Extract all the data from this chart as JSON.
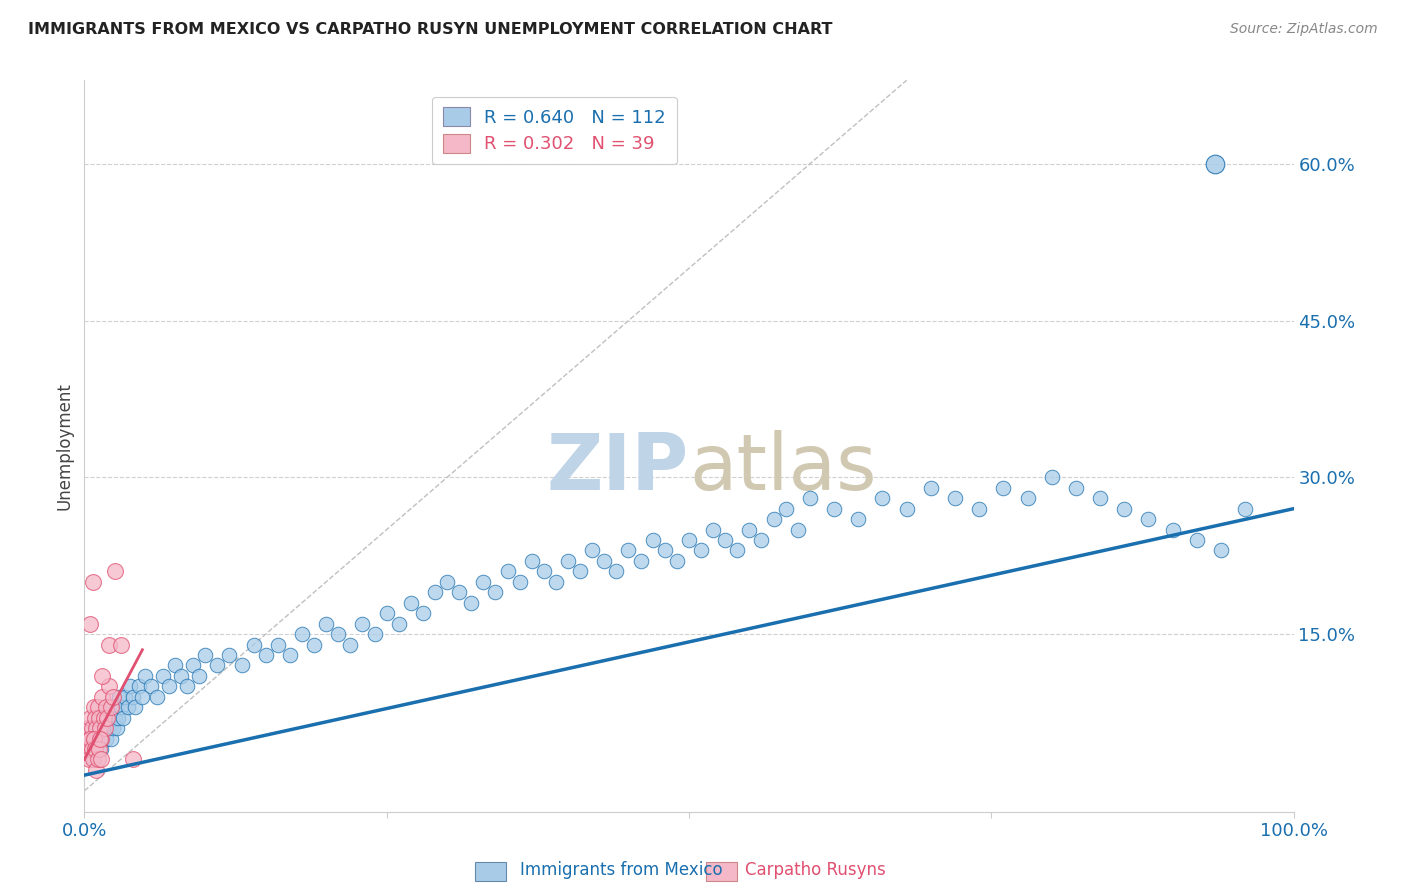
{
  "title": "IMMIGRANTS FROM MEXICO VS CARPATHO RUSYN UNEMPLOYMENT CORRELATION CHART",
  "source": "Source: ZipAtlas.com",
  "ylabel": "Unemployment",
  "yticks": [
    "60.0%",
    "45.0%",
    "30.0%",
    "15.0%"
  ],
  "ytick_vals": [
    0.6,
    0.45,
    0.3,
    0.15
  ],
  "xlim": [
    0.0,
    1.0
  ],
  "ylim": [
    -0.02,
    0.68
  ],
  "blue_R": 0.64,
  "blue_N": 112,
  "pink_R": 0.302,
  "pink_N": 39,
  "legend_label_blue": "Immigrants from Mexico",
  "legend_label_pink": "Carpatho Rusyns",
  "blue_color": "#a8cce8",
  "pink_color": "#f4b8c8",
  "line_blue": "#1a6faf",
  "line_pink": "#e05070",
  "diagonal_color": "#c0c0c0",
  "watermark_zip_color": "#c0d4e8",
  "watermark_atlas_color": "#d0c8b0",
  "background_color": "#ffffff",
  "blue_line_start_x": 0.0,
  "blue_line_start_y": 0.015,
  "blue_line_end_x": 1.0,
  "blue_line_end_y": 0.27,
  "pink_line_start_x": 0.0,
  "pink_line_start_y": 0.03,
  "pink_line_end_x": 0.048,
  "pink_line_end_y": 0.135,
  "blue_scatter_x": [
    0.005,
    0.007,
    0.008,
    0.009,
    0.01,
    0.011,
    0.012,
    0.013,
    0.014,
    0.015,
    0.016,
    0.017,
    0.018,
    0.019,
    0.02,
    0.021,
    0.022,
    0.023,
    0.024,
    0.025,
    0.026,
    0.027,
    0.028,
    0.029,
    0.03,
    0.032,
    0.034,
    0.036,
    0.038,
    0.04,
    0.042,
    0.045,
    0.048,
    0.05,
    0.055,
    0.06,
    0.065,
    0.07,
    0.075,
    0.08,
    0.085,
    0.09,
    0.095,
    0.1,
    0.11,
    0.12,
    0.13,
    0.14,
    0.15,
    0.16,
    0.17,
    0.18,
    0.19,
    0.2,
    0.21,
    0.22,
    0.23,
    0.24,
    0.25,
    0.26,
    0.27,
    0.28,
    0.29,
    0.3,
    0.31,
    0.32,
    0.33,
    0.34,
    0.35,
    0.36,
    0.37,
    0.38,
    0.39,
    0.4,
    0.41,
    0.42,
    0.43,
    0.44,
    0.45,
    0.46,
    0.47,
    0.48,
    0.49,
    0.5,
    0.51,
    0.52,
    0.53,
    0.54,
    0.55,
    0.56,
    0.57,
    0.58,
    0.59,
    0.6,
    0.62,
    0.64,
    0.66,
    0.68,
    0.7,
    0.72,
    0.74,
    0.76,
    0.78,
    0.8,
    0.82,
    0.84,
    0.86,
    0.88,
    0.9,
    0.92,
    0.94,
    0.96
  ],
  "blue_scatter_y": [
    0.04,
    0.05,
    0.03,
    0.06,
    0.04,
    0.07,
    0.05,
    0.06,
    0.04,
    0.05,
    0.06,
    0.07,
    0.05,
    0.08,
    0.06,
    0.07,
    0.05,
    0.08,
    0.06,
    0.07,
    0.08,
    0.06,
    0.07,
    0.09,
    0.08,
    0.07,
    0.09,
    0.08,
    0.1,
    0.09,
    0.08,
    0.1,
    0.09,
    0.11,
    0.1,
    0.09,
    0.11,
    0.1,
    0.12,
    0.11,
    0.1,
    0.12,
    0.11,
    0.13,
    0.12,
    0.13,
    0.12,
    0.14,
    0.13,
    0.14,
    0.13,
    0.15,
    0.14,
    0.16,
    0.15,
    0.14,
    0.16,
    0.15,
    0.17,
    0.16,
    0.18,
    0.17,
    0.19,
    0.2,
    0.19,
    0.18,
    0.2,
    0.19,
    0.21,
    0.2,
    0.22,
    0.21,
    0.2,
    0.22,
    0.21,
    0.23,
    0.22,
    0.21,
    0.23,
    0.22,
    0.24,
    0.23,
    0.22,
    0.24,
    0.23,
    0.25,
    0.24,
    0.23,
    0.25,
    0.24,
    0.26,
    0.27,
    0.25,
    0.28,
    0.27,
    0.26,
    0.28,
    0.27,
    0.29,
    0.28,
    0.27,
    0.29,
    0.28,
    0.3,
    0.29,
    0.28,
    0.27,
    0.26,
    0.25,
    0.24,
    0.23,
    0.27
  ],
  "pink_scatter_x": [
    0.003,
    0.004,
    0.005,
    0.006,
    0.007,
    0.008,
    0.009,
    0.01,
    0.011,
    0.012,
    0.013,
    0.014,
    0.015,
    0.016,
    0.017,
    0.018,
    0.019,
    0.02,
    0.022,
    0.024,
    0.003,
    0.004,
    0.005,
    0.006,
    0.007,
    0.008,
    0.009,
    0.01,
    0.011,
    0.012,
    0.013,
    0.014,
    0.015,
    0.02,
    0.025,
    0.03,
    0.007,
    0.005,
    0.04
  ],
  "pink_scatter_y": [
    0.06,
    0.05,
    0.07,
    0.06,
    0.05,
    0.08,
    0.07,
    0.06,
    0.08,
    0.07,
    0.06,
    0.05,
    0.09,
    0.07,
    0.06,
    0.08,
    0.07,
    0.1,
    0.08,
    0.09,
    0.04,
    0.03,
    0.05,
    0.04,
    0.03,
    0.05,
    0.04,
    0.02,
    0.03,
    0.04,
    0.05,
    0.03,
    0.11,
    0.14,
    0.21,
    0.14,
    0.2,
    0.16,
    0.03
  ]
}
